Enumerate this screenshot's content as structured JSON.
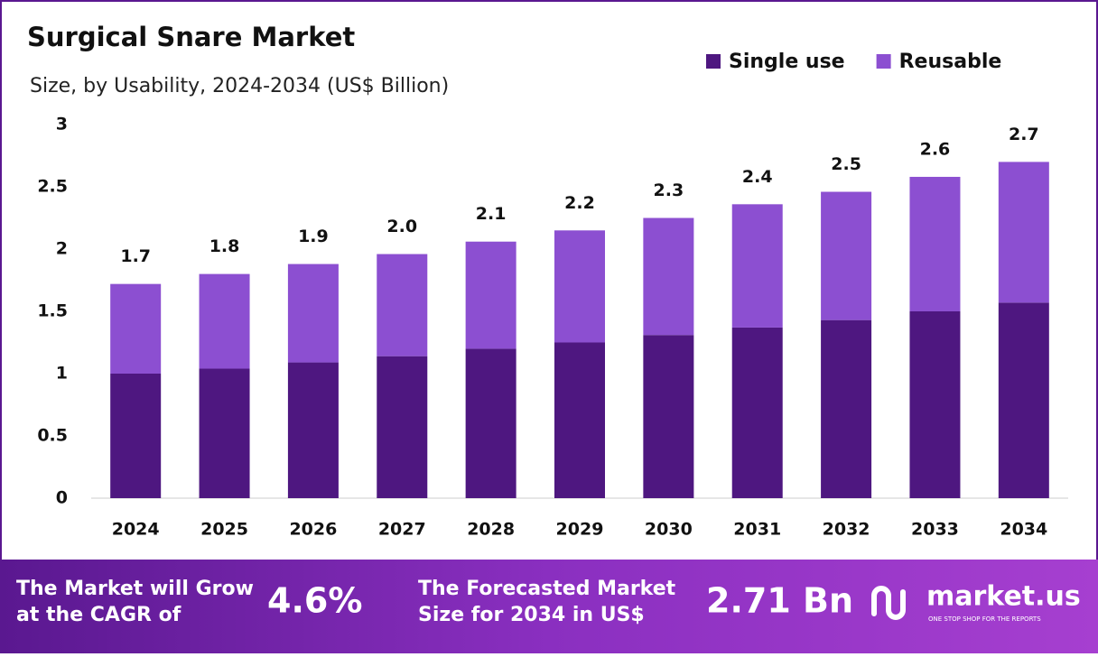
{
  "chart_data": {
    "type": "stacked_bar",
    "title": "Surgical Snare Market",
    "subtitle": "Size, by Usability, 2024-2034 (US$ Billion)",
    "categories": [
      "2024",
      "2025",
      "2026",
      "2027",
      "2028",
      "2029",
      "2030",
      "2031",
      "2032",
      "2033",
      "2034"
    ],
    "series": [
      {
        "name": "Single use",
        "color": "#4e1780",
        "values": [
          1.0,
          1.04,
          1.09,
          1.14,
          1.2,
          1.25,
          1.31,
          1.37,
          1.43,
          1.5,
          1.57
        ]
      },
      {
        "name": "Reusable",
        "color": "#8c4fd1",
        "values": [
          0.72,
          0.76,
          0.79,
          0.82,
          0.86,
          0.9,
          0.94,
          0.99,
          1.03,
          1.08,
          1.13
        ]
      }
    ],
    "total_labels": [
      "1.7",
      "1.8",
      "1.9",
      "2.0",
      "2.1",
      "2.2",
      "2.3",
      "2.4",
      "2.5",
      "2.6",
      "2.7"
    ],
    "ylim": [
      0,
      3
    ],
    "yticks": [
      0,
      0.5,
      1,
      1.5,
      2,
      2.5,
      3
    ],
    "grid": false,
    "legend": "top-right"
  },
  "footer": {
    "cagr_text": [
      "The Market will Grow",
      "at the CAGR of"
    ],
    "cagr_value": "4.6%",
    "forecast_text": [
      "The Forecasted Market",
      "Size for 2034 in US$"
    ],
    "forecast_value": "2.71 Bn",
    "brand": "market.us",
    "tagline": "ONE STOP SHOP FOR THE REPORTS"
  }
}
